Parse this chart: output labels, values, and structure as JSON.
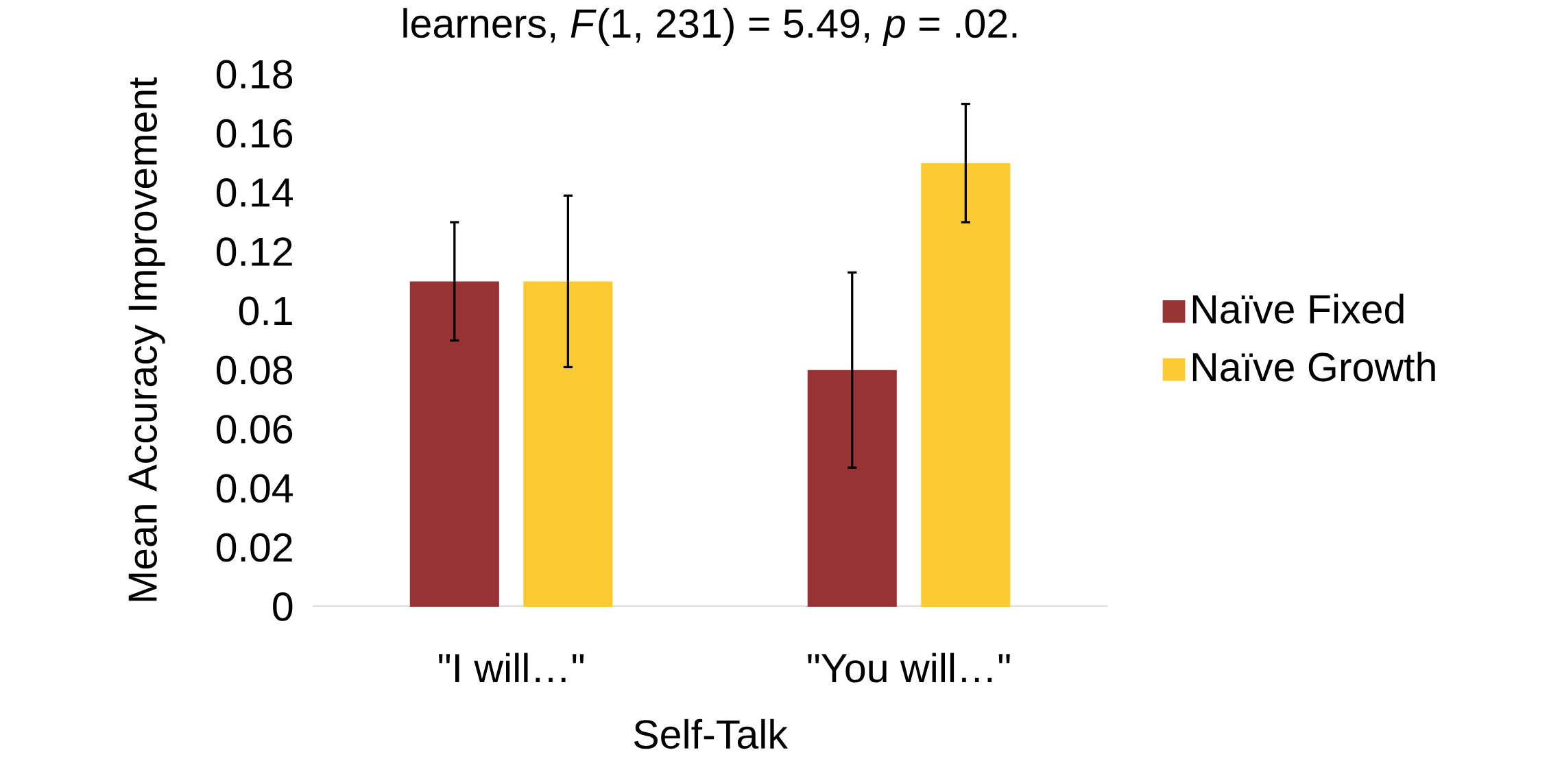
{
  "chart_data": {
    "type": "bar",
    "title": "learners, *F*(1, 231) = 5.49, *p* = .02.",
    "xlabel": "Self-Talk",
    "ylabel": "Mean Accuracy Improvement",
    "categories": [
      "\"I will…\"",
      "\"You will…\""
    ],
    "series": [
      {
        "name": "Naïve Fixed",
        "color": "#993233",
        "values": [
          0.11,
          0.08
        ],
        "errors": [
          0.02,
          0.033
        ]
      },
      {
        "name": "Naïve Growth",
        "color": "#fdca33",
        "values": [
          0.11,
          0.15
        ],
        "errors": [
          0.029,
          0.02
        ]
      }
    ],
    "ylim": [
      0,
      0.18
    ],
    "yticks": [
      0,
      0.02,
      0.04,
      0.06,
      0.08,
      0.1,
      0.12,
      0.14,
      0.16,
      0.18
    ],
    "legend": "right"
  }
}
